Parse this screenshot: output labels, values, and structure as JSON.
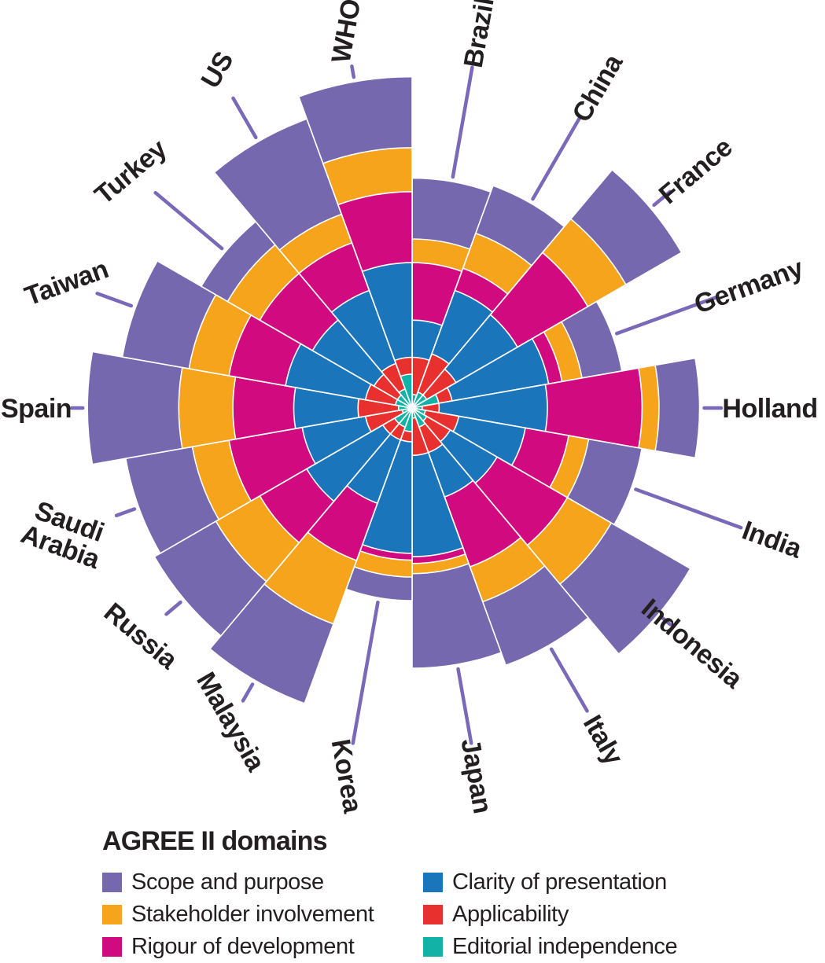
{
  "chart_data": {
    "type": "polar_stacked_rose",
    "title": "",
    "legend": {
      "title": "AGREE II domains",
      "position": "bottom",
      "columns": 2
    },
    "unit": "domain score (radial length, % of maximum radius)",
    "radial_range": [
      0,
      100
    ],
    "angle_start_deg_from_north": 0,
    "sector_width_deg": 20,
    "categories": [
      "Brazil",
      "China",
      "France",
      "Germany",
      "Holland",
      "India",
      "Indonesia",
      "Italy",
      "Japan",
      "Korea",
      "Malaysia",
      "Russia",
      "Saudi Arabia",
      "Spain",
      "Taiwan",
      "Turkey",
      "US",
      "WHO"
    ],
    "category_label_lines": {
      "Saudi Arabia": [
        "Saudi",
        "Arabia"
      ]
    },
    "series": [
      {
        "name": "Scope and purpose",
        "color": "#7668AE",
        "values": [
          68,
          70,
          92,
          63,
          85,
          69,
          95,
          81,
          77,
          57,
          93,
          88,
          86,
          96,
          87,
          72,
          91,
          98
        ]
      },
      {
        "name": "Stakeholder involvement",
        "color": "#F6A41C",
        "values": [
          50,
          55,
          73,
          51,
          73,
          53,
          68,
          61,
          49,
          50,
          68,
          67,
          66,
          69,
          67,
          63,
          61,
          77
        ]
      },
      {
        "name": "Rigour of development",
        "color": "#D10B7F",
        "values": [
          43,
          44,
          60,
          45,
          68,
          47,
          53,
          50,
          46,
          45,
          48,
          52,
          55,
          53,
          55,
          52,
          52,
          64
        ]
      },
      {
        "name": "Clarity of presentation",
        "color": "#1B75BB",
        "values": [
          26,
          37,
          36,
          41,
          40,
          34,
          29,
          28,
          44,
          43,
          30,
          36,
          33,
          35,
          38,
          34,
          37,
          43
        ]
      },
      {
        "name": "Applicability",
        "color": "#E8312E",
        "values": [
          15,
          17,
          15,
          12,
          8,
          14,
          13,
          14,
          14,
          10,
          10,
          10,
          14,
          16,
          14,
          13,
          14,
          15
        ]
      },
      {
        "name": "Editorial independence",
        "color": "#12B2A6",
        "values": [
          4,
          5,
          5,
          8,
          3,
          4,
          5,
          6,
          3,
          7,
          6,
          6,
          3,
          4,
          5,
          5,
          6,
          10
        ]
      }
    ],
    "colors": {
      "label_text": "#231F20",
      "leader_line": "#7A68B8",
      "wedge_outline": "#FFFFFF",
      "background": "#FFFFFF"
    }
  }
}
